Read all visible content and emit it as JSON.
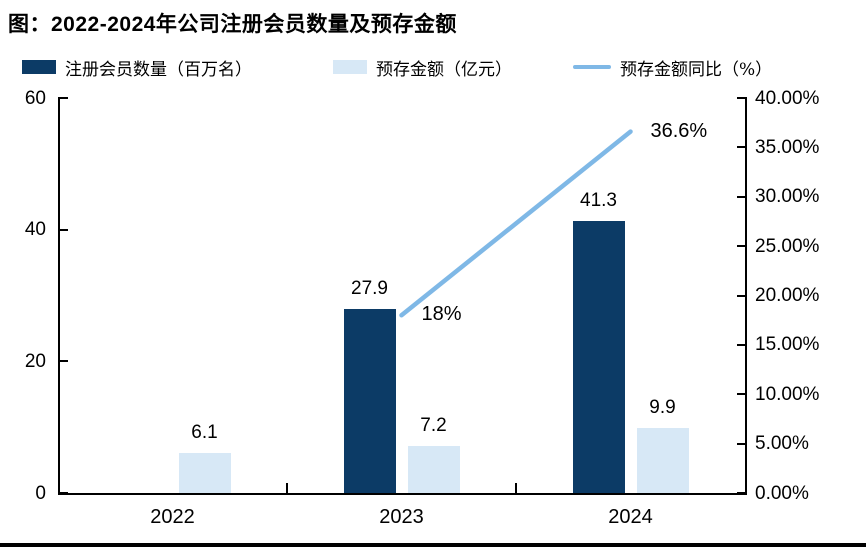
{
  "title": "图：2022-2024年公司注册会员数量及预存金额",
  "colors": {
    "members_bar": "#0C3B66",
    "prepaid_bar": "#D7E8F6",
    "yoy_line": "#7FB8E6",
    "axis": "#000000"
  },
  "legend": [
    {
      "label": "注册会员数量（百万名）",
      "swatch": "bar-dark"
    },
    {
      "label": "预存金额（亿元）",
      "swatch": "bar-light"
    },
    {
      "label": "预存金额同比（%）",
      "swatch": "line"
    }
  ],
  "chart_data": {
    "type": "bar",
    "subtype": "grouped-bar-with-line-combo",
    "title": "图：2022-2024年公司注册会员数量及预存金额",
    "categories": [
      "2022",
      "2023",
      "2024"
    ],
    "series": [
      {
        "name": "注册会员数量（百万名）",
        "type": "bar",
        "axis": "left",
        "color": "#0C3B66",
        "values": [
          null,
          27.9,
          41.3
        ],
        "labels": [
          "",
          "27.9",
          "41.3"
        ]
      },
      {
        "name": "预存金额（亿元）",
        "type": "bar",
        "axis": "left",
        "color": "#D7E8F6",
        "values": [
          6.1,
          7.2,
          9.9
        ],
        "labels": [
          "6.1",
          "7.2",
          "9.9"
        ]
      },
      {
        "name": "预存金额同比（%）",
        "type": "line",
        "axis": "right",
        "color": "#7FB8E6",
        "values": [
          null,
          18,
          36.6
        ],
        "labels": [
          "",
          "18%",
          "36.6%"
        ]
      }
    ],
    "left_axis": {
      "min": 0,
      "max": 60,
      "ticks": [
        {
          "v": 0,
          "label": "0"
        },
        {
          "v": 20,
          "label": "20"
        },
        {
          "v": 40,
          "label": "40"
        },
        {
          "v": 60,
          "label": "60"
        }
      ]
    },
    "right_axis": {
      "min": 0,
      "max": 40,
      "ticks": [
        {
          "v": 0,
          "label": "0.00%"
        },
        {
          "v": 5,
          "label": "5.00%"
        },
        {
          "v": 10,
          "label": "10.00%"
        },
        {
          "v": 15,
          "label": "15.00%"
        },
        {
          "v": 20,
          "label": "20.00%"
        },
        {
          "v": 25,
          "label": "25.00%"
        },
        {
          "v": 30,
          "label": "30.00%"
        },
        {
          "v": 35,
          "label": "35.00%"
        },
        {
          "v": 40,
          "label": "40.00%"
        }
      ]
    },
    "grid": false,
    "legend_position": "top"
  }
}
